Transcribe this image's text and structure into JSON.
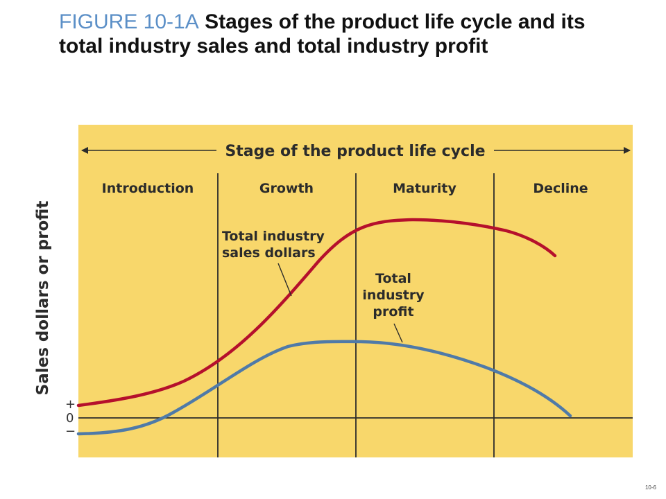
{
  "figure": {
    "label": "FIGURE 10-1A",
    "title": "Stages of the product life cycle and its total industry sales and total industry profit"
  },
  "colors": {
    "background": "#f8d76b",
    "sales_curve": "#b5102c",
    "profit_curve": "#4f7aa8",
    "figure_label": "#5b8fc7"
  },
  "diagram": {
    "header": "Stage of the product life cycle",
    "stages": [
      {
        "label": "Introduction"
      },
      {
        "label": "Growth"
      },
      {
        "label": "Maturity"
      },
      {
        "label": "Decline"
      }
    ],
    "y_axis_label": "Sales dollars or profit",
    "y_ticks": {
      "plus": "+",
      "zero": "0",
      "minus": "−"
    },
    "sales_label": [
      "Total industry",
      "sales dollars"
    ],
    "profit_label": [
      "Total",
      "industry",
      "profit"
    ]
  },
  "slide_number": "10-6"
}
